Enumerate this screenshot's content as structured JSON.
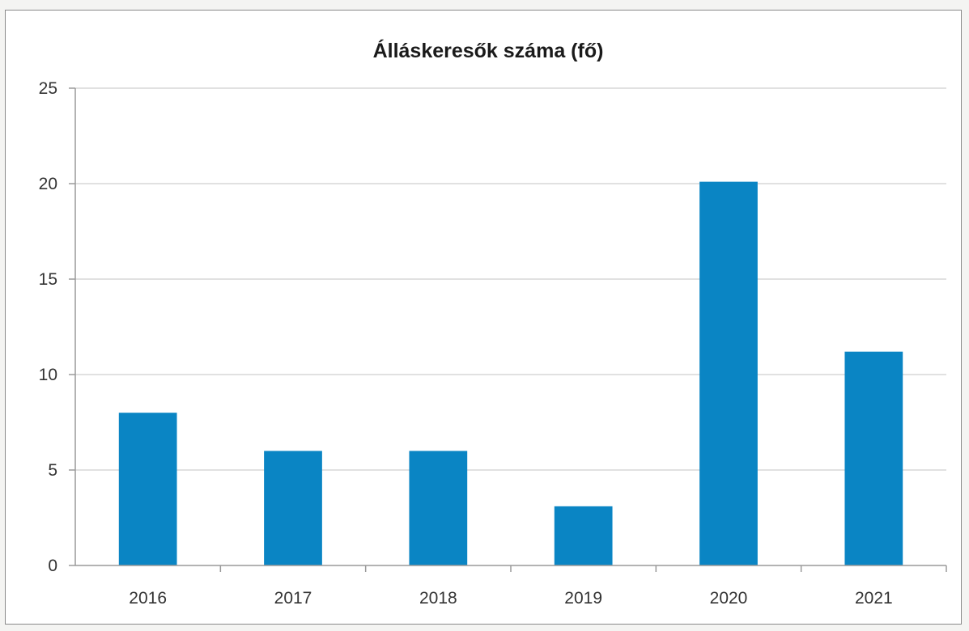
{
  "chart_data": {
    "type": "bar",
    "title": "Álláskeresők száma (fő)",
    "categories": [
      "2016",
      "2017",
      "2018",
      "2019",
      "2020",
      "2021"
    ],
    "values": [
      8,
      6,
      6,
      3.1,
      20.1,
      11.2
    ],
    "y_ticks": [
      "0",
      "5",
      "10",
      "15",
      "20",
      "25"
    ],
    "ylim": [
      0,
      25
    ],
    "grid": true,
    "legend": "none",
    "bar_color": "#0a85c4"
  }
}
